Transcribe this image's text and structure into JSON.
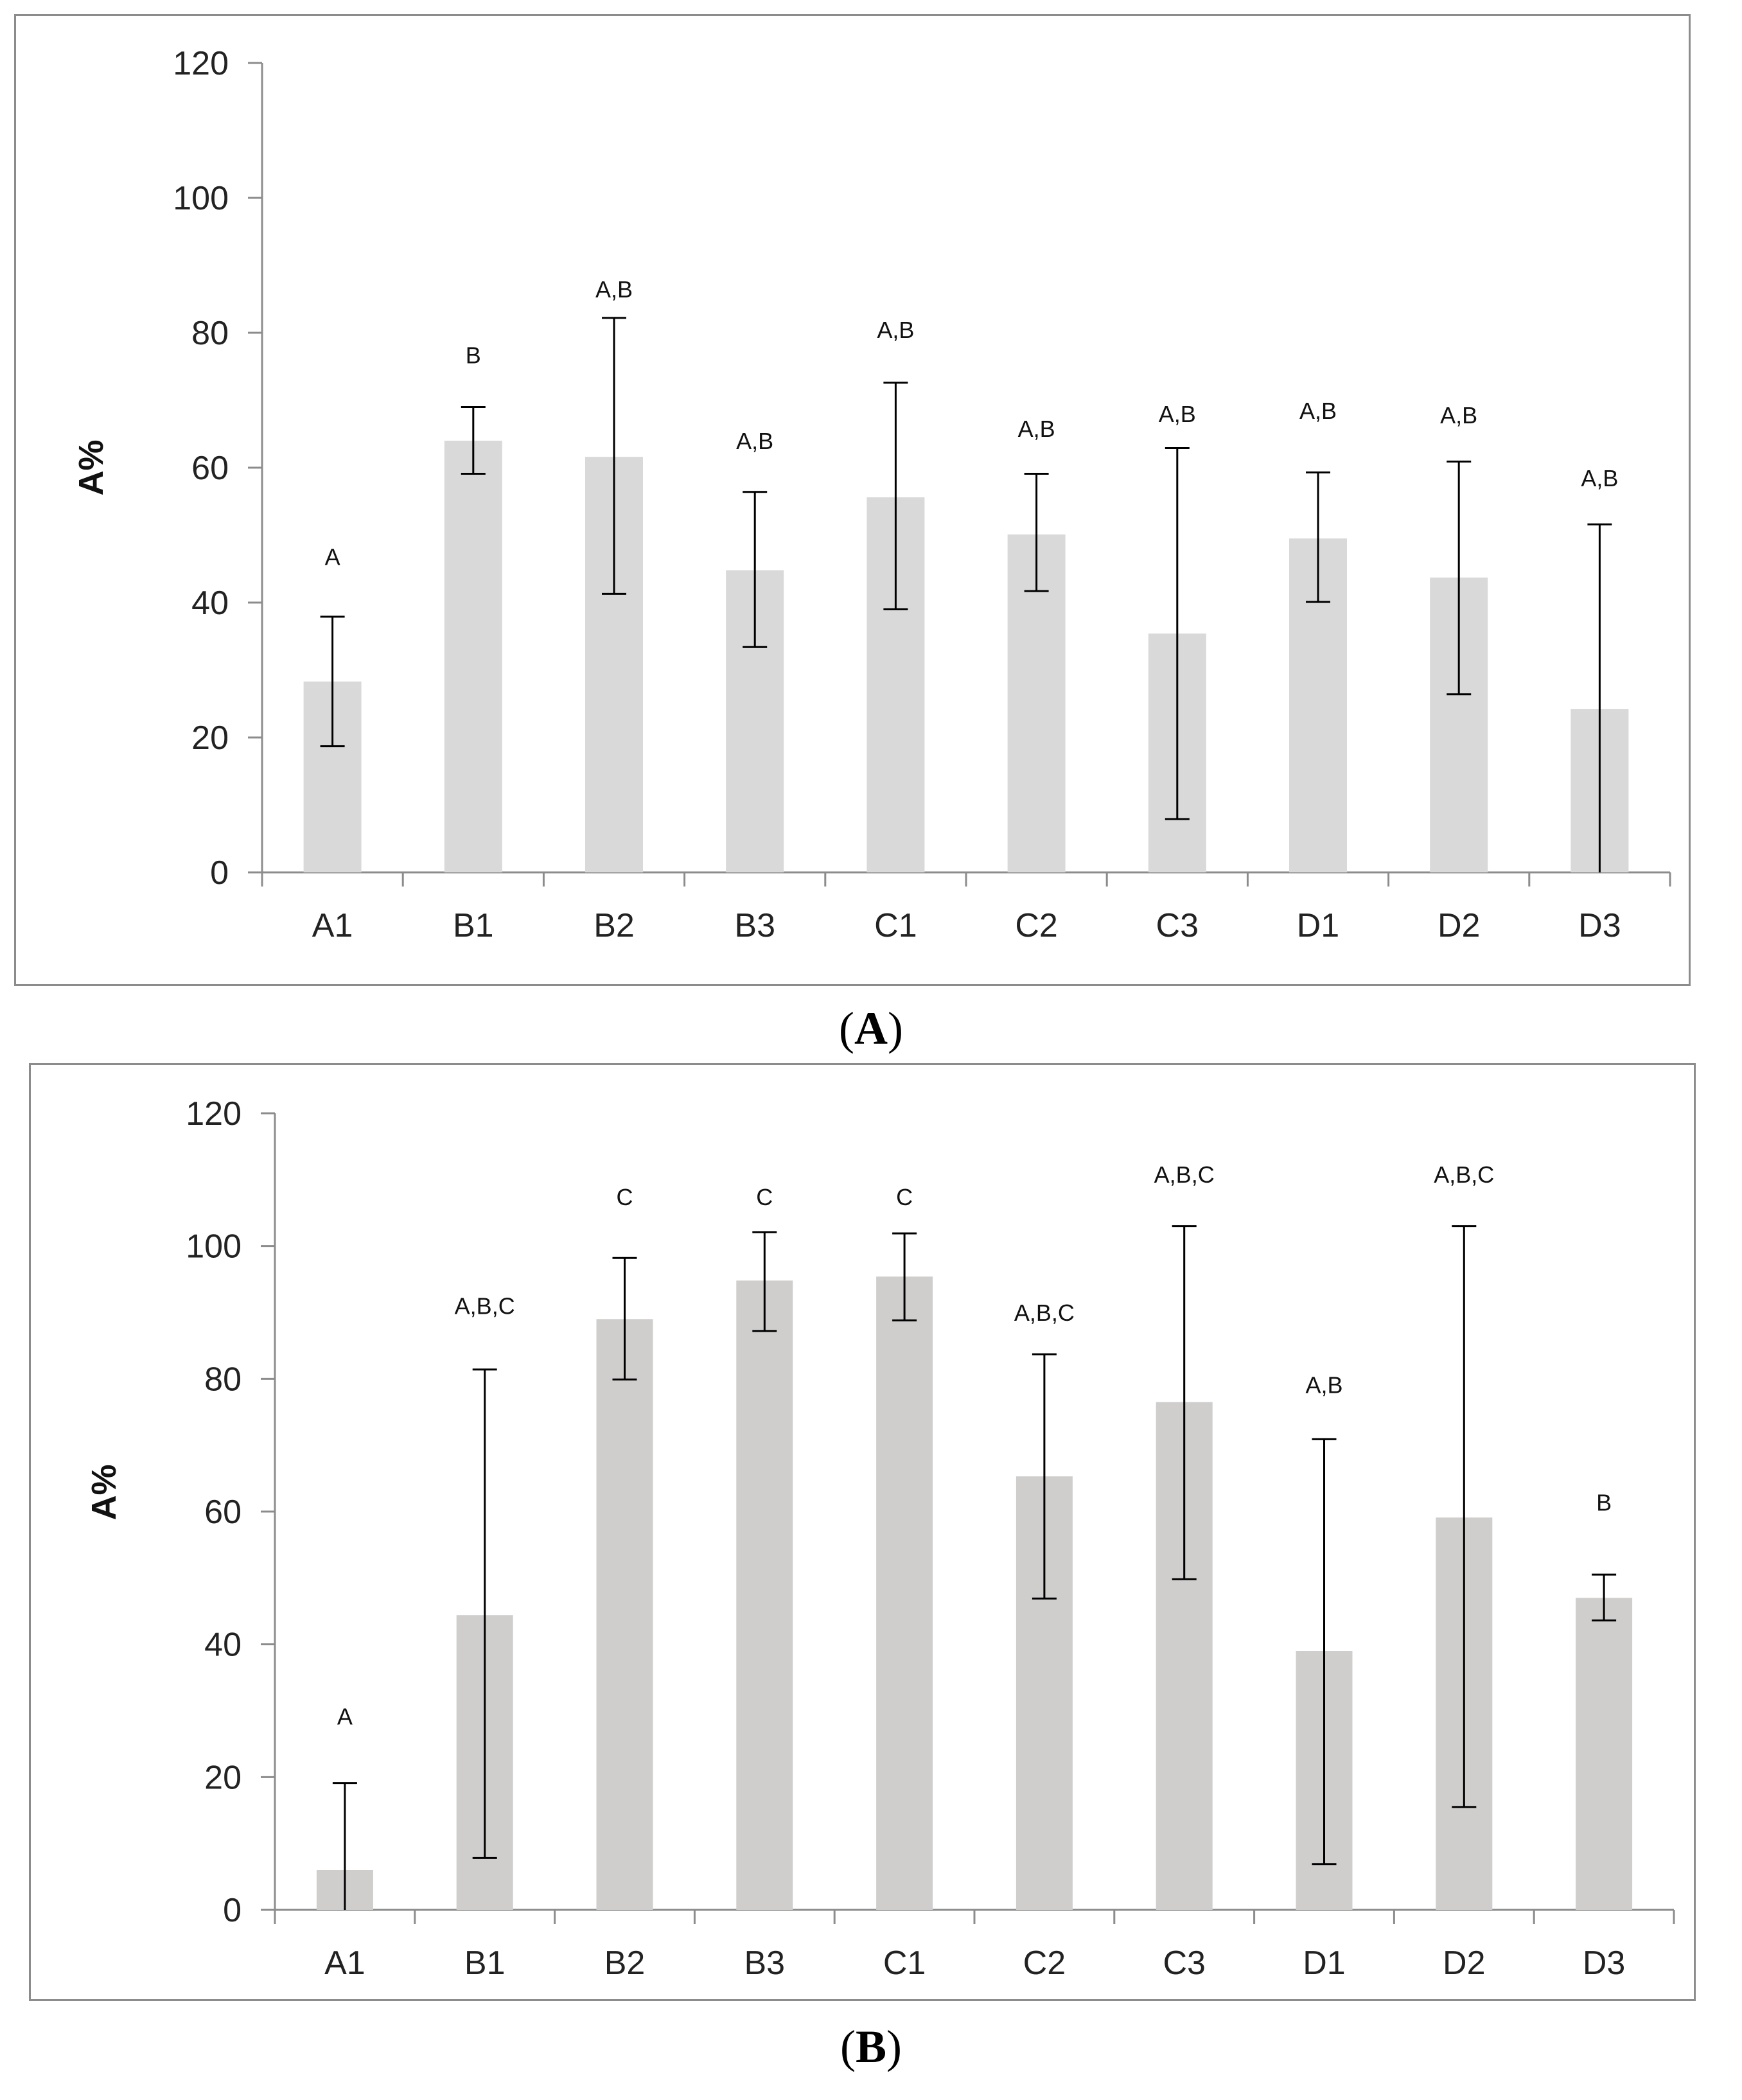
{
  "colors": {
    "bar_a": "#d9d9d9",
    "bar_b": "#d0cdcd",
    "axis": "#8c8c8c",
    "error": "#000000",
    "frame": "#8c8c8c"
  },
  "chart_data": [
    {
      "type": "bar",
      "panel": "A",
      "caption": {
        "open": "(",
        "letter": "A",
        "close": ")"
      },
      "ylabel": "A%",
      "ylim": [
        0,
        120
      ],
      "yticks": [
        "0",
        "20",
        "40",
        "60",
        "80",
        "100",
        "120"
      ],
      "categories": [
        "A1",
        "B1",
        "B2",
        "B3",
        "C1",
        "C2",
        "C3",
        "D1",
        "D2",
        "D3"
      ],
      "values": [
        28.3,
        64.0,
        61.6,
        44.8,
        55.6,
        50.1,
        35.4,
        49.5,
        43.7,
        24.2
      ],
      "err_low": [
        18.7,
        59.1,
        41.3,
        33.4,
        39.0,
        41.7,
        7.9,
        40.1,
        26.4,
        0.0
      ],
      "err_high": [
        37.9,
        69.0,
        82.2,
        56.4,
        72.6,
        59.1,
        62.9,
        59.3,
        60.9,
        51.6
      ],
      "labels": [
        "A",
        "B",
        "A,B",
        "A,B",
        "A,B",
        "A,B",
        "A,B",
        "A,B",
        "A,B",
        "A,B"
      ],
      "label_y": [
        46.8,
        76.7,
        86.5,
        64.0,
        80.5,
        65.8,
        68.0,
        68.5,
        67.8,
        58.5
      ]
    },
    {
      "type": "bar",
      "panel": "B",
      "caption": {
        "open": "(",
        "letter": "B",
        "close": ")"
      },
      "ylabel": "A%",
      "ylim": [
        0,
        120
      ],
      "yticks": [
        "0",
        "20",
        "40",
        "60",
        "80",
        "100",
        "120"
      ],
      "categories": [
        "A1",
        "B1",
        "B2",
        "B3",
        "C1",
        "C2",
        "C3",
        "D1",
        "D2",
        "D3"
      ],
      "values": [
        6.0,
        44.4,
        89.0,
        94.8,
        95.4,
        65.3,
        76.5,
        39.0,
        59.1,
        47.0
      ],
      "err_low": [
        0.0,
        7.8,
        79.9,
        87.2,
        88.8,
        46.9,
        49.8,
        6.9,
        15.5,
        43.6
      ],
      "err_high": [
        19.1,
        81.4,
        98.2,
        102.1,
        101.9,
        83.7,
        103.0,
        70.9,
        103.0,
        50.5
      ],
      "labels": [
        "A",
        "A,B,C",
        "C",
        "C",
        "C",
        "A,B,C",
        "A,B,C",
        "A,B",
        "A,B,C",
        "B"
      ],
      "label_y": [
        29.2,
        91.0,
        107.4,
        107.4,
        107.4,
        90.0,
        110.8,
        79.1,
        110.8,
        61.4
      ]
    }
  ]
}
